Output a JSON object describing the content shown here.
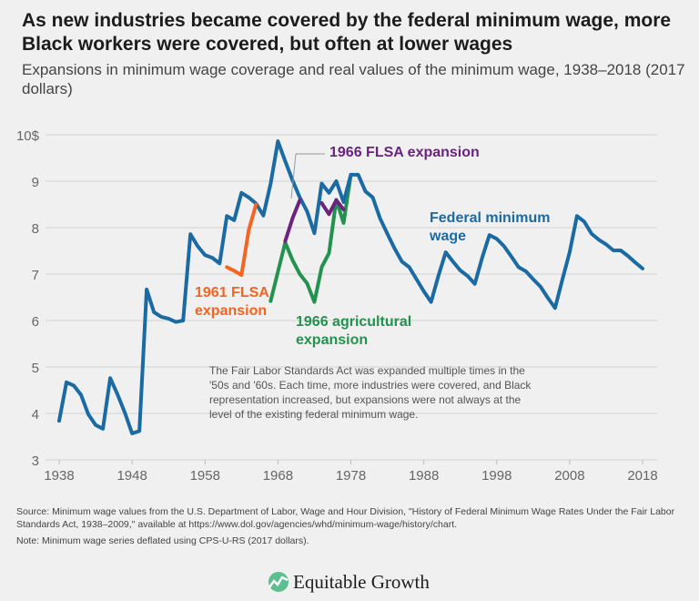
{
  "header": {
    "title": "As new industries became covered by the federal minimum wage, more Black workers were covered, but often at lower wages",
    "subtitle": "Expansions in minimum wage coverage and real values of the minimum wage, 1938–2018 (2017 dollars)"
  },
  "chart_data": {
    "type": "line",
    "title": "",
    "xlabel": "",
    "ylabel": "",
    "xlim": [
      1938,
      2018
    ],
    "ylim": [
      3,
      10
    ],
    "grid": true,
    "x_ticks": [
      "1938",
      "1948",
      "1958",
      "1968",
      "1978",
      "1988",
      "1998",
      "2008",
      "2018"
    ],
    "y_ticks": [
      "3",
      "4",
      "5",
      "6",
      "7",
      "8",
      "9",
      "10$"
    ],
    "series": [
      {
        "name": "Federal minimum wage",
        "color": "#1a6aa3",
        "x": [
          1938,
          1939,
          1940,
          1941,
          1942,
          1943,
          1944,
          1945,
          1946,
          1947,
          1948,
          1949,
          1950,
          1951,
          1952,
          1953,
          1954,
          1955,
          1956,
          1957,
          1958,
          1959,
          1960,
          1961,
          1962,
          1963,
          1964,
          1965,
          1966,
          1967,
          1968,
          1969,
          1970,
          1971,
          1972,
          1973,
          1974,
          1975,
          1976,
          1977,
          1978,
          1979,
          1980,
          1981,
          1982,
          1983,
          1984,
          1985,
          1986,
          1987,
          1988,
          1989,
          1990,
          1991,
          1992,
          1993,
          1994,
          1995,
          1996,
          1997,
          1998,
          1999,
          2000,
          2001,
          2002,
          2003,
          2004,
          2005,
          2006,
          2007,
          2008,
          2009,
          2010,
          2011,
          2012,
          2013,
          2014,
          2015,
          2016,
          2017,
          2018
        ],
        "y": [
          3.84,
          4.67,
          4.6,
          4.4,
          3.98,
          3.75,
          3.67,
          4.76,
          4.41,
          4.02,
          3.57,
          3.62,
          6.67,
          6.18,
          6.08,
          6.04,
          5.97,
          6.0,
          7.86,
          7.6,
          7.41,
          7.35,
          7.23,
          8.25,
          8.16,
          8.75,
          8.65,
          8.52,
          8.26,
          8.95,
          9.86,
          9.43,
          9.02,
          8.65,
          8.35,
          7.88,
          8.95,
          8.75,
          9.0,
          8.55,
          9.14,
          9.14,
          8.78,
          8.65,
          8.2,
          7.87,
          7.55,
          7.27,
          7.15,
          6.89,
          6.63,
          6.4,
          6.96,
          7.47,
          7.27,
          7.08,
          6.96,
          6.79,
          7.35,
          7.84,
          7.76,
          7.6,
          7.38,
          7.15,
          7.06,
          6.89,
          6.73,
          6.49,
          6.27,
          6.88,
          7.47,
          8.25,
          8.13,
          7.87,
          7.74,
          7.64,
          7.51,
          7.51,
          7.39,
          7.25,
          7.12
        ]
      },
      {
        "name": "1961 FLSA expansion",
        "color": "#f26522",
        "x": [
          1961,
          1962,
          1963,
          1964,
          1965
        ],
        "y": [
          7.15,
          7.07,
          6.98,
          7.95,
          8.5
        ]
      },
      {
        "name": "1966 FLSA expansion",
        "color": "#6b2380",
        "segments": [
          {
            "x": [
              1969,
              1970,
              1971
            ],
            "y": [
              7.71,
              8.2,
              8.59
            ]
          },
          {
            "x": [
              1974,
              1975,
              1976,
              1977
            ],
            "y": [
              8.53,
              8.29,
              8.59,
              8.39
            ]
          }
        ]
      },
      {
        "name": "1966 agricultural expansion",
        "color": "#22924f",
        "x": [
          1967,
          1968,
          1969,
          1970,
          1971,
          1972,
          1973,
          1974,
          1975,
          1976,
          1977,
          1978
        ],
        "y": [
          6.42,
          7.05,
          7.68,
          7.3,
          7.0,
          6.8,
          6.4,
          7.15,
          7.45,
          8.6,
          8.1,
          9.14
        ]
      }
    ],
    "labels": {
      "flsa_1961": [
        "1961 FLSA",
        "expansion"
      ],
      "flsa_1966": "1966 FLSA expansion",
      "ag_1966": [
        "1966 agricultural",
        "expansion"
      ],
      "federal": [
        "Federal minimum",
        "wage"
      ]
    },
    "annotation": "The Fair Labor Standards Act was expanded multiple times in the '50s and '60s. Each time, more industries were covered, and Black representation increased, but expansions were not always at the level of the existing federal minimum wage."
  },
  "footer": {
    "source": "Source: Minimum wage values from the U.S. Department of Labor, Wage and Hour Division, \"History  of Federal Minimum Wage Rates Under the Fair Labor Standards Act, 1938–2009,\" available at https://www.dol.gov/agencies/whd/minimum-wage/history/chart.",
    "note": "Note: Minimum wage series deflated using CPS-U-RS (2017 dollars).",
    "logo_text": "Equitable Growth"
  }
}
